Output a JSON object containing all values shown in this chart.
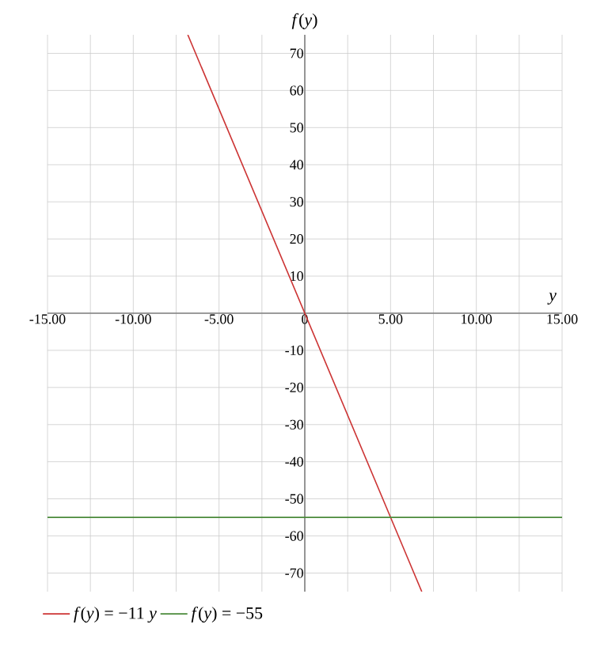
{
  "chart_data": {
    "type": "line",
    "xlabel": "y",
    "ylabel": "*f*(*y*)",
    "xlim": [
      -15,
      15
    ],
    "ylim": [
      -75,
      75
    ],
    "xticks": [
      {
        "value": -15,
        "label": "-15.00"
      },
      {
        "value": -12.5,
        "label": null
      },
      {
        "value": -10,
        "label": "-10.00"
      },
      {
        "value": -7.5,
        "label": null
      },
      {
        "value": -5,
        "label": "-5.00"
      },
      {
        "value": -2.5,
        "label": null
      },
      {
        "value": 0,
        "label": "0"
      },
      {
        "value": 2.5,
        "label": null
      },
      {
        "value": 5,
        "label": "5.00"
      },
      {
        "value": 7.5,
        "label": null
      },
      {
        "value": 10,
        "label": "10.00"
      },
      {
        "value": 12.5,
        "label": null
      },
      {
        "value": 15,
        "label": "15.00"
      }
    ],
    "yticks": [
      -70,
      -60,
      -50,
      -40,
      -30,
      -20,
      -10,
      {
        "value": 0,
        "label": null
      },
      10,
      20,
      30,
      40,
      50,
      60,
      70
    ],
    "grid": true,
    "legend": "bottom",
    "marker": "none",
    "line_style": "solid",
    "series": [
      {
        "name": "*f*(*y*) = −11 *y*",
        "color": "#cc3333",
        "x": [
          -6.82,
          6.82
        ],
        "values": [
          75,
          -75
        ]
      },
      {
        "name": "*f*(*y*) = −55",
        "color": "#4a8a3a",
        "x": [
          -15,
          15
        ],
        "values": [
          -55,
          -55
        ]
      }
    ]
  }
}
